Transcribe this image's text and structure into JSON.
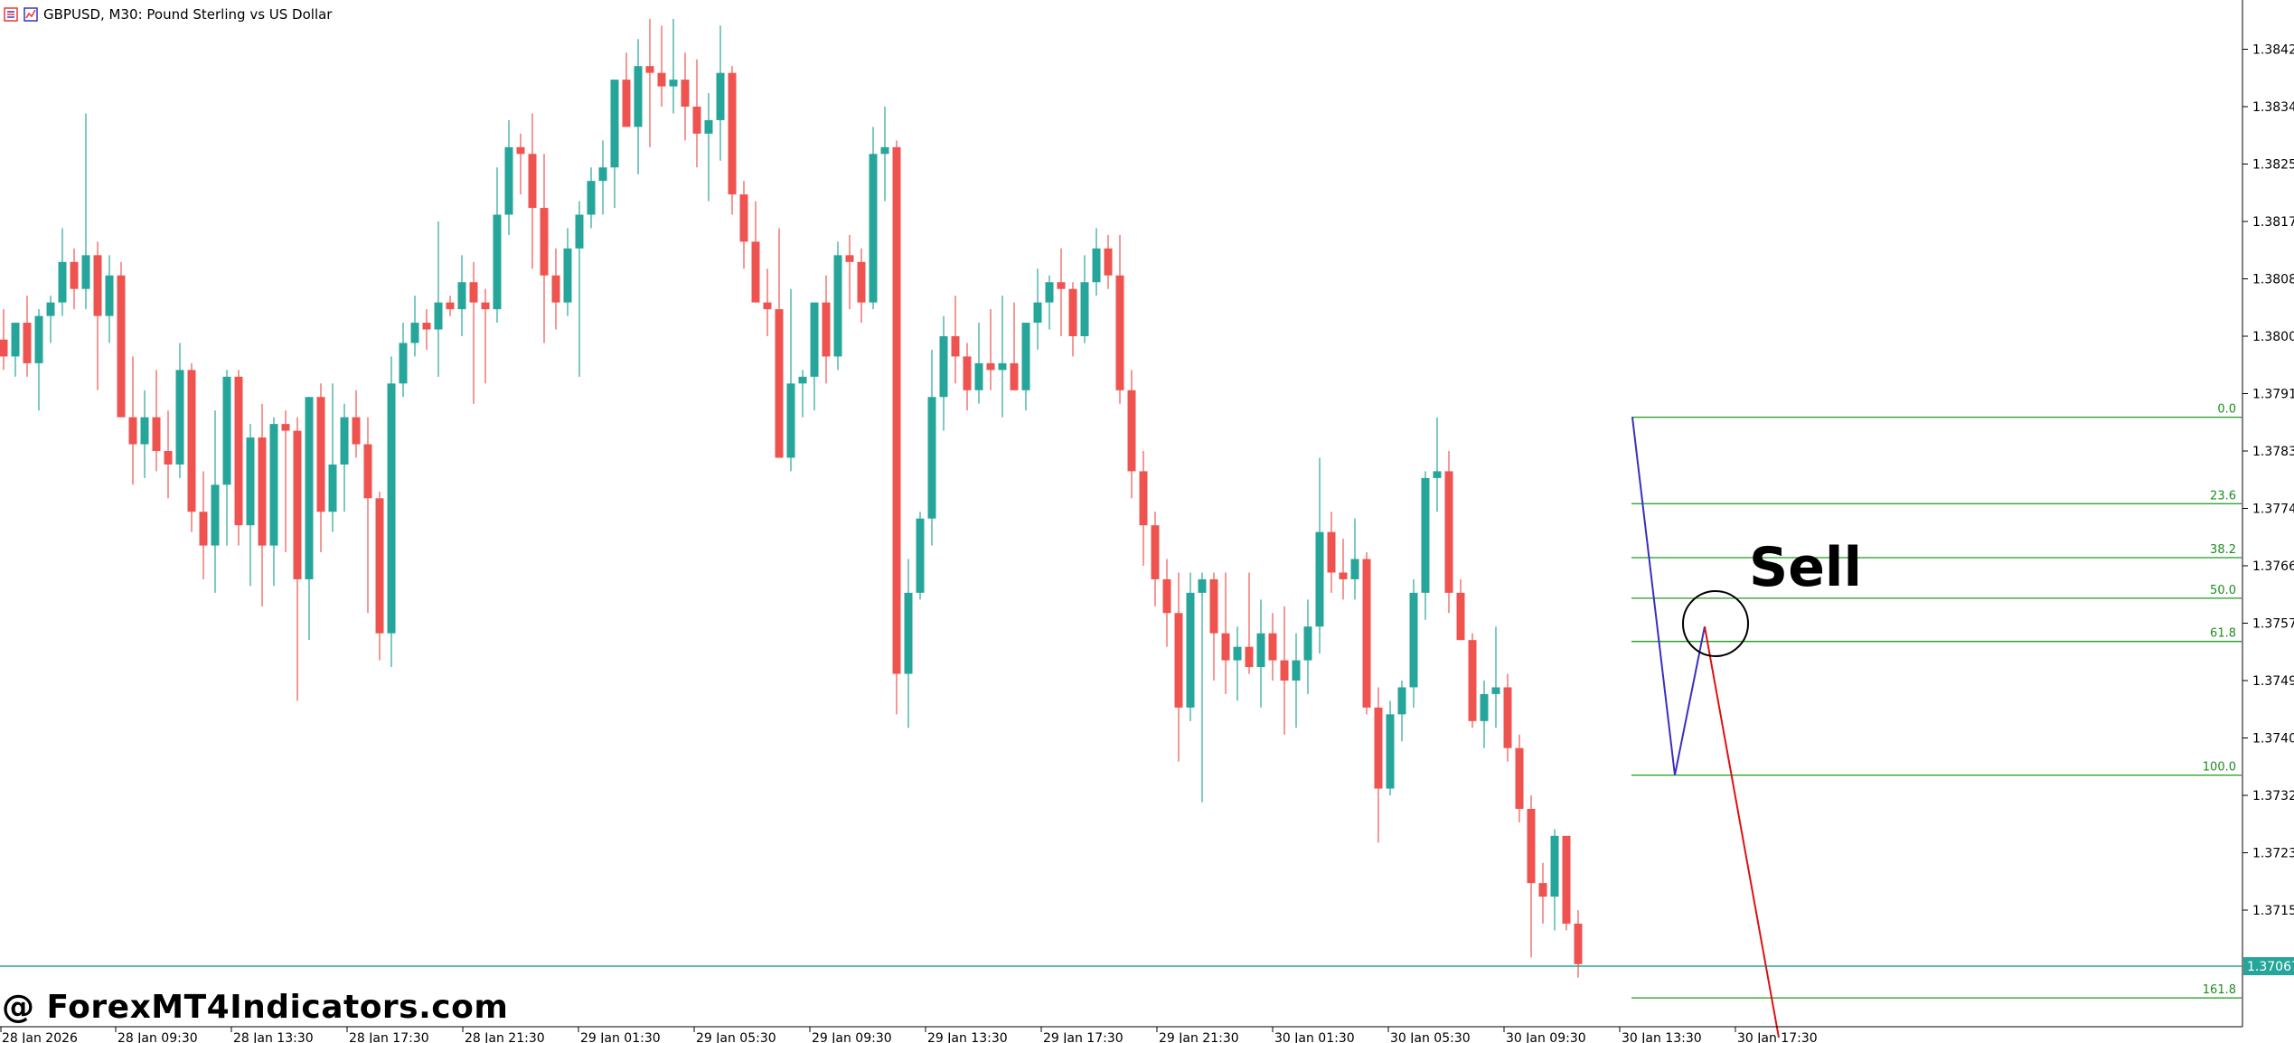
{
  "window": {
    "title": "GBPUSD, M30:  Pound Sterling vs US Dollar",
    "icon_names": [
      "chart-bars-icon",
      "chart-window-icon"
    ]
  },
  "watermark": "@ ForexMT4Indicators.com",
  "colors": {
    "bull": "#26a69a",
    "bear": "#ef5350",
    "fib_line": "#1e9a1e",
    "fib_text": "#1e8c1e",
    "zigzag_blue": "#3a2fbf",
    "zigzag_red": "#e01010",
    "current_price_line": "#26a69a",
    "axis": "#000000"
  },
  "annotation": {
    "signal_text": "Sell"
  },
  "chart_data": {
    "type": "candlestick",
    "symbol": "GBPUSD",
    "timeframe": "M30",
    "title": "GBPUSD, M30:  Pound Sterling vs US Dollar",
    "ylim": [
      1.3692,
      1.38475
    ],
    "y_ticks": [
      "1.38425",
      "1.38340",
      "1.38255",
      "1.38170",
      "1.38085",
      "1.38000",
      "1.37915",
      "1.37830",
      "1.37745",
      "1.37660",
      "1.37575",
      "1.37490",
      "1.37405",
      "1.37320",
      "1.37235",
      "1.37150"
    ],
    "x_ticks": [
      "28 Jan 2026",
      "28 Jan 09:30",
      "28 Jan 13:30",
      "28 Jan 17:30",
      "28 Jan 21:30",
      "29 Jan 01:30",
      "29 Jan 05:30",
      "29 Jan 09:30",
      "29 Jan 13:30",
      "29 Jan 17:30",
      "29 Jan 21:30",
      "30 Jan 01:30",
      "30 Jan 05:30",
      "30 Jan 09:30",
      "30 Jan 13:30",
      "30 Jan 17:30"
    ],
    "current_price": "1.37067",
    "candles_ohlc": [
      [
        1.37995,
        1.3804,
        1.3795,
        1.3797
      ],
      [
        1.3797,
        1.3801,
        1.3794,
        1.3802
      ],
      [
        1.3802,
        1.3806,
        1.3794,
        1.3796
      ],
      [
        1.3796,
        1.3804,
        1.3789,
        1.3803
      ],
      [
        1.3803,
        1.3806,
        1.3799,
        1.3805
      ],
      [
        1.3805,
        1.3816,
        1.3803,
        1.3811
      ],
      [
        1.3811,
        1.3813,
        1.3804,
        1.3807
      ],
      [
        1.3807,
        1.3833,
        1.3804,
        1.3812
      ],
      [
        1.3812,
        1.3814,
        1.3792,
        1.3803
      ],
      [
        1.3803,
        1.3812,
        1.3799,
        1.3809
      ],
      [
        1.3809,
        1.3811,
        1.3788,
        1.3788
      ],
      [
        1.3788,
        1.3797,
        1.3778,
        1.3784
      ],
      [
        1.3784,
        1.3792,
        1.3779,
        1.3788
      ],
      [
        1.3788,
        1.3795,
        1.378,
        1.3783
      ],
      [
        1.3783,
        1.3789,
        1.3776,
        1.3781
      ],
      [
        1.3781,
        1.3799,
        1.3779,
        1.3795
      ],
      [
        1.3795,
        1.3796,
        1.3771,
        1.3774
      ],
      [
        1.3774,
        1.378,
        1.3764,
        1.3769
      ],
      [
        1.3769,
        1.3789,
        1.3762,
        1.3778
      ],
      [
        1.3778,
        1.3795,
        1.3769,
        1.3794
      ],
      [
        1.3794,
        1.3795,
        1.3769,
        1.3772
      ],
      [
        1.3772,
        1.3787,
        1.3763,
        1.3785
      ],
      [
        1.3785,
        1.379,
        1.376,
        1.3769
      ],
      [
        1.3769,
        1.3788,
        1.3763,
        1.3787
      ],
      [
        1.3787,
        1.3789,
        1.3768,
        1.3786
      ],
      [
        1.3786,
        1.3788,
        1.3746,
        1.3764
      ],
      [
        1.3764,
        1.3791,
        1.3755,
        1.3791
      ],
      [
        1.3791,
        1.3793,
        1.3768,
        1.3774
      ],
      [
        1.3774,
        1.3793,
        1.3771,
        1.3781
      ],
      [
        1.3781,
        1.379,
        1.3774,
        1.3788
      ],
      [
        1.3788,
        1.3792,
        1.3782,
        1.3784
      ],
      [
        1.3784,
        1.3788,
        1.3759,
        1.3776
      ],
      [
        1.3776,
        1.3777,
        1.3752,
        1.3756
      ],
      [
        1.3756,
        1.3797,
        1.3751,
        1.3793
      ],
      [
        1.3793,
        1.3802,
        1.3791,
        1.3799
      ],
      [
        1.3799,
        1.3806,
        1.3797,
        1.3802
      ],
      [
        1.3802,
        1.3804,
        1.3798,
        1.3801
      ],
      [
        1.3801,
        1.3817,
        1.3794,
        1.3805
      ],
      [
        1.3805,
        1.3806,
        1.3803,
        1.3804
      ],
      [
        1.3804,
        1.3812,
        1.38,
        1.3808
      ],
      [
        1.3808,
        1.3811,
        1.379,
        1.3805
      ],
      [
        1.3805,
        1.3807,
        1.3793,
        1.3804
      ],
      [
        1.3804,
        1.3825,
        1.3802,
        1.3818
      ],
      [
        1.3818,
        1.3832,
        1.3815,
        1.3828
      ],
      [
        1.3828,
        1.383,
        1.3821,
        1.3827
      ],
      [
        1.3827,
        1.3833,
        1.381,
        1.3819
      ],
      [
        1.3819,
        1.3827,
        1.3799,
        1.3809
      ],
      [
        1.3809,
        1.3813,
        1.3801,
        1.3805
      ],
      [
        1.3805,
        1.3816,
        1.3803,
        1.3813
      ],
      [
        1.3813,
        1.382,
        1.3794,
        1.3818
      ],
      [
        1.3818,
        1.3825,
        1.3816,
        1.3823
      ],
      [
        1.3823,
        1.3829,
        1.3818,
        1.3825
      ],
      [
        1.3825,
        1.3838,
        1.3819,
        1.3838
      ],
      [
        1.3838,
        1.3842,
        1.3831,
        1.3831
      ],
      [
        1.3831,
        1.3844,
        1.3824,
        1.384
      ],
      [
        1.384,
        1.3847,
        1.3828,
        1.3839
      ],
      [
        1.3839,
        1.3846,
        1.3834,
        1.3837
      ],
      [
        1.3837,
        1.3847,
        1.3833,
        1.3838
      ],
      [
        1.3838,
        1.3842,
        1.3829,
        1.3834
      ],
      [
        1.3834,
        1.3841,
        1.3825,
        1.383
      ],
      [
        1.383,
        1.3836,
        1.382,
        1.3832
      ],
      [
        1.3832,
        1.3846,
        1.3826,
        1.3839
      ],
      [
        1.3839,
        1.384,
        1.3818,
        1.3821
      ],
      [
        1.3821,
        1.3823,
        1.381,
        1.3814
      ],
      [
        1.3814,
        1.382,
        1.3805,
        1.3805
      ],
      [
        1.3805,
        1.381,
        1.38,
        1.3804
      ],
      [
        1.3804,
        1.3816,
        1.38,
        1.3782
      ],
      [
        1.3782,
        1.3807,
        1.378,
        1.3793
      ],
      [
        1.3793,
        1.3795,
        1.3788,
        1.3794
      ],
      [
        1.3794,
        1.3804,
        1.3789,
        1.3805
      ],
      [
        1.3805,
        1.3809,
        1.3793,
        1.3797
      ],
      [
        1.3797,
        1.3814,
        1.3795,
        1.3812
      ],
      [
        1.3812,
        1.3815,
        1.3804,
        1.3811
      ],
      [
        1.3811,
        1.3813,
        1.3802,
        1.3805
      ],
      [
        1.3805,
        1.3831,
        1.3804,
        1.3827
      ],
      [
        1.3827,
        1.3834,
        1.382,
        1.3828
      ],
      [
        1.3828,
        1.3829,
        1.3744,
        1.375
      ],
      [
        1.375,
        1.3767,
        1.3742,
        1.3762
      ],
      [
        1.3762,
        1.3774,
        1.3761,
        1.3773
      ],
      [
        1.3773,
        1.3798,
        1.3769,
        1.3791
      ],
      [
        1.3791,
        1.3803,
        1.3786,
        1.38
      ],
      [
        1.38,
        1.3806,
        1.3793,
        1.3797
      ],
      [
        1.3797,
        1.3799,
        1.3789,
        1.3792
      ],
      [
        1.3792,
        1.3802,
        1.379,
        1.3796
      ],
      [
        1.3796,
        1.3804,
        1.3792,
        1.3795
      ],
      [
        1.3795,
        1.3806,
        1.3788,
        1.3796
      ],
      [
        1.3796,
        1.3805,
        1.3792,
        1.3792
      ],
      [
        1.3792,
        1.3801,
        1.3789,
        1.3802
      ],
      [
        1.3802,
        1.381,
        1.3798,
        1.3805
      ],
      [
        1.3805,
        1.3809,
        1.3801,
        1.3808
      ],
      [
        1.3808,
        1.3813,
        1.38,
        1.3807
      ],
      [
        1.3807,
        1.3808,
        1.3797,
        1.38
      ],
      [
        1.38,
        1.3812,
        1.3799,
        1.3808
      ],
      [
        1.3808,
        1.3816,
        1.3806,
        1.3813
      ],
      [
        1.3813,
        1.3815,
        1.3807,
        1.3809
      ],
      [
        1.3809,
        1.3815,
        1.379,
        1.3792
      ],
      [
        1.3792,
        1.3795,
        1.3776,
        1.378
      ],
      [
        1.378,
        1.3783,
        1.3766,
        1.3772
      ],
      [
        1.3772,
        1.3774,
        1.376,
        1.3764
      ],
      [
        1.3764,
        1.3767,
        1.3754,
        1.3759
      ],
      [
        1.3759,
        1.3765,
        1.3737,
        1.3745
      ],
      [
        1.3745,
        1.3765,
        1.3743,
        1.3762
      ],
      [
        1.3762,
        1.3765,
        1.3731,
        1.3764
      ],
      [
        1.3764,
        1.3765,
        1.3749,
        1.3756
      ],
      [
        1.3756,
        1.3765,
        1.3747,
        1.3752
      ],
      [
        1.3752,
        1.3757,
        1.3746,
        1.3754
      ],
      [
        1.3754,
        1.3765,
        1.375,
        1.3751
      ],
      [
        1.3751,
        1.3761,
        1.3745,
        1.3756
      ],
      [
        1.3756,
        1.3759,
        1.3749,
        1.3752
      ],
      [
        1.3752,
        1.376,
        1.3741,
        1.3749
      ],
      [
        1.3749,
        1.3756,
        1.3742,
        1.3752
      ],
      [
        1.3752,
        1.3761,
        1.3747,
        1.3757
      ],
      [
        1.3757,
        1.3782,
        1.3753,
        1.3771
      ],
      [
        1.3771,
        1.3774,
        1.3762,
        1.3765
      ],
      [
        1.3765,
        1.377,
        1.3761,
        1.3764
      ],
      [
        1.3764,
        1.3773,
        1.3761,
        1.3767
      ],
      [
        1.3767,
        1.3768,
        1.3744,
        1.3745
      ],
      [
        1.3745,
        1.3748,
        1.3725,
        1.3733
      ],
      [
        1.3733,
        1.3746,
        1.3732,
        1.3744
      ],
      [
        1.3744,
        1.3749,
        1.374,
        1.3748
      ],
      [
        1.3748,
        1.3764,
        1.3745,
        1.3762
      ],
      [
        1.3762,
        1.378,
        1.3758,
        1.3779
      ],
      [
        1.3779,
        1.3788,
        1.3774,
        1.378
      ],
      [
        1.378,
        1.3783,
        1.3759,
        1.3762
      ],
      [
        1.3762,
        1.3764,
        1.3755,
        1.3755
      ],
      [
        1.3755,
        1.3756,
        1.3742,
        1.3743
      ],
      [
        1.3743,
        1.3749,
        1.3739,
        1.3747
      ],
      [
        1.3747,
        1.3757,
        1.3742,
        1.3748
      ],
      [
        1.3748,
        1.375,
        1.3737,
        1.3739
      ],
      [
        1.3739,
        1.3741,
        1.3728,
        1.373
      ],
      [
        1.373,
        1.3732,
        1.3708,
        1.3719
      ],
      [
        1.3719,
        1.3722,
        1.3713,
        1.3717
      ],
      [
        1.3717,
        1.3727,
        1.3712,
        1.3726
      ],
      [
        1.3726,
        1.3726,
        1.3712,
        1.3713
      ],
      [
        1.3713,
        1.3715,
        1.3705,
        1.3707
      ]
    ],
    "overlays": {
      "fibonacci_levels": [
        {
          "label": "0.0",
          "price": 1.3788
        },
        {
          "label": "23.6",
          "price": 1.37752
        },
        {
          "label": "38.2",
          "price": 1.37672
        },
        {
          "label": "50.0",
          "price": 1.37612
        },
        {
          "label": "61.8",
          "price": 1.37548
        },
        {
          "label": "100.0",
          "price": 1.3735
        },
        {
          "label": "161.8",
          "price": 1.3702
        }
      ],
      "zigzag_up_leg": [
        [
          1.3788
        ],
        [
          1.3735
        ],
        [
          1.3757
        ]
      ],
      "signal": "Sell"
    }
  }
}
